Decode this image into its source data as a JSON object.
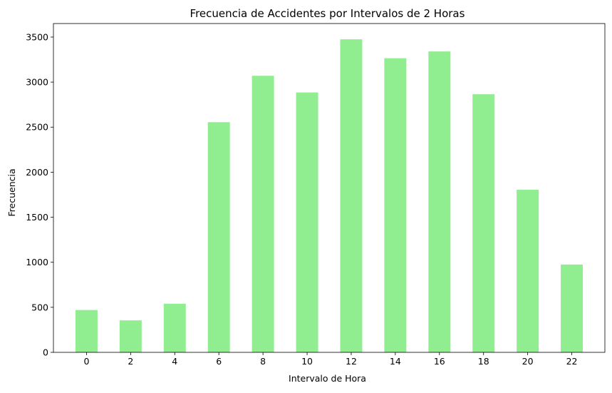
{
  "chart_data": {
    "type": "bar",
    "title": "Frecuencia de Accidentes por Intervalos de 2 Horas",
    "xlabel": "Intervalo de Hora",
    "ylabel": "Frecuencia",
    "categories": [
      "0",
      "2",
      "4",
      "6",
      "8",
      "10",
      "12",
      "14",
      "16",
      "18",
      "20",
      "22"
    ],
    "values": [
      470,
      355,
      540,
      2555,
      3070,
      2885,
      3475,
      3265,
      3340,
      2865,
      1805,
      975
    ],
    "ylim": [
      0,
      3650
    ],
    "yticks": [
      0,
      500,
      1000,
      1500,
      2000,
      2500,
      3000,
      3500
    ],
    "bar_color": "#90ee90",
    "grid": false,
    "legend": false
  }
}
